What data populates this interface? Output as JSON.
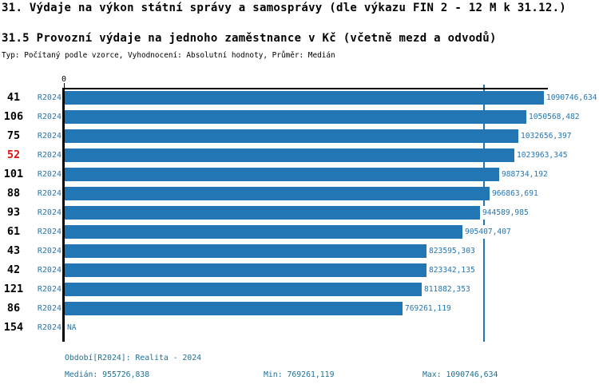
{
  "header": {
    "title": "31. Výdaje na výkon státní správy a samosprávy (dle výkazu FIN 2 - 12 M k 31.12.)",
    "subtitle": "31.5 Provozní výdaje na jednoho zaměstnance v Kč (včetně mezd a odvodů)",
    "meta": "Typ: Počítaný podle vzorce, Vyhodnocení: Absolutní hodnoty, Průměr: Medián"
  },
  "chart_data": {
    "type": "bar",
    "orientation": "horizontal",
    "x_axis": {
      "origin_label": "0"
    },
    "categories": [
      "41",
      "106",
      "75",
      "52",
      "101",
      "88",
      "93",
      "61",
      "43",
      "42",
      "121",
      "86",
      "154"
    ],
    "series": [
      {
        "name": "R2024",
        "values": [
          1090746.634,
          1050568.482,
          1032656.397,
          1023963.345,
          988734.192,
          966863.691,
          944589.985,
          905407.407,
          823595.303,
          823342.135,
          811882.353,
          769261.119,
          null
        ]
      }
    ],
    "value_labels": [
      "1090746,634",
      "1050568,482",
      "1032656,397",
      "1023963,345",
      "988734,192",
      "966863,691",
      "944589,985",
      "905407,407",
      "823595,303",
      "823342,135",
      "811882,353",
      "769261,119",
      "NA"
    ],
    "na_label": "NA",
    "highlighted_category": "52",
    "median": 955726.838,
    "xlim": [
      0,
      1090746.634
    ],
    "legend": "none",
    "grid": "off",
    "colors": {
      "bar": "#2376b4",
      "median_line": "#2376b4",
      "blue_text": "#2376b4",
      "highlight_text": "#dd1111",
      "footer_text": "#1b7095",
      "axis": "#000000"
    }
  },
  "rows": [
    {
      "id": "41",
      "period": "R2024",
      "value": 1090746.634,
      "label": "1090746,634",
      "highlight": false
    },
    {
      "id": "106",
      "period": "R2024",
      "value": 1050568.482,
      "label": "1050568,482",
      "highlight": false
    },
    {
      "id": "75",
      "period": "R2024",
      "value": 1032656.397,
      "label": "1032656,397",
      "highlight": false
    },
    {
      "id": "52",
      "period": "R2024",
      "value": 1023963.345,
      "label": "1023963,345",
      "highlight": true
    },
    {
      "id": "101",
      "period": "R2024",
      "value": 988734.192,
      "label": "988734,192",
      "highlight": false
    },
    {
      "id": "88",
      "period": "R2024",
      "value": 966863.691,
      "label": "966863,691",
      "highlight": false
    },
    {
      "id": "93",
      "period": "R2024",
      "value": 944589.985,
      "label": "944589,985",
      "highlight": false
    },
    {
      "id": "61",
      "period": "R2024",
      "value": 905407.407,
      "label": "905407,407",
      "highlight": false
    },
    {
      "id": "43",
      "period": "R2024",
      "value": 823595.303,
      "label": "823595,303",
      "highlight": false
    },
    {
      "id": "42",
      "period": "R2024",
      "value": 823342.135,
      "label": "823342,135",
      "highlight": false
    },
    {
      "id": "121",
      "period": "R2024",
      "value": 811882.353,
      "label": "811882,353",
      "highlight": false
    },
    {
      "id": "86",
      "period": "R2024",
      "value": 769261.119,
      "label": "769261,119",
      "highlight": false
    },
    {
      "id": "154",
      "period": "R2024",
      "value": null,
      "label": "NA",
      "highlight": false
    }
  ],
  "footer": {
    "period_line": "Období[R2024]: Realita - 2024",
    "median_label": "Medián: 955726,838",
    "min_label": "Min: 769261,119",
    "max_label": "Max: 1090746,634"
  }
}
